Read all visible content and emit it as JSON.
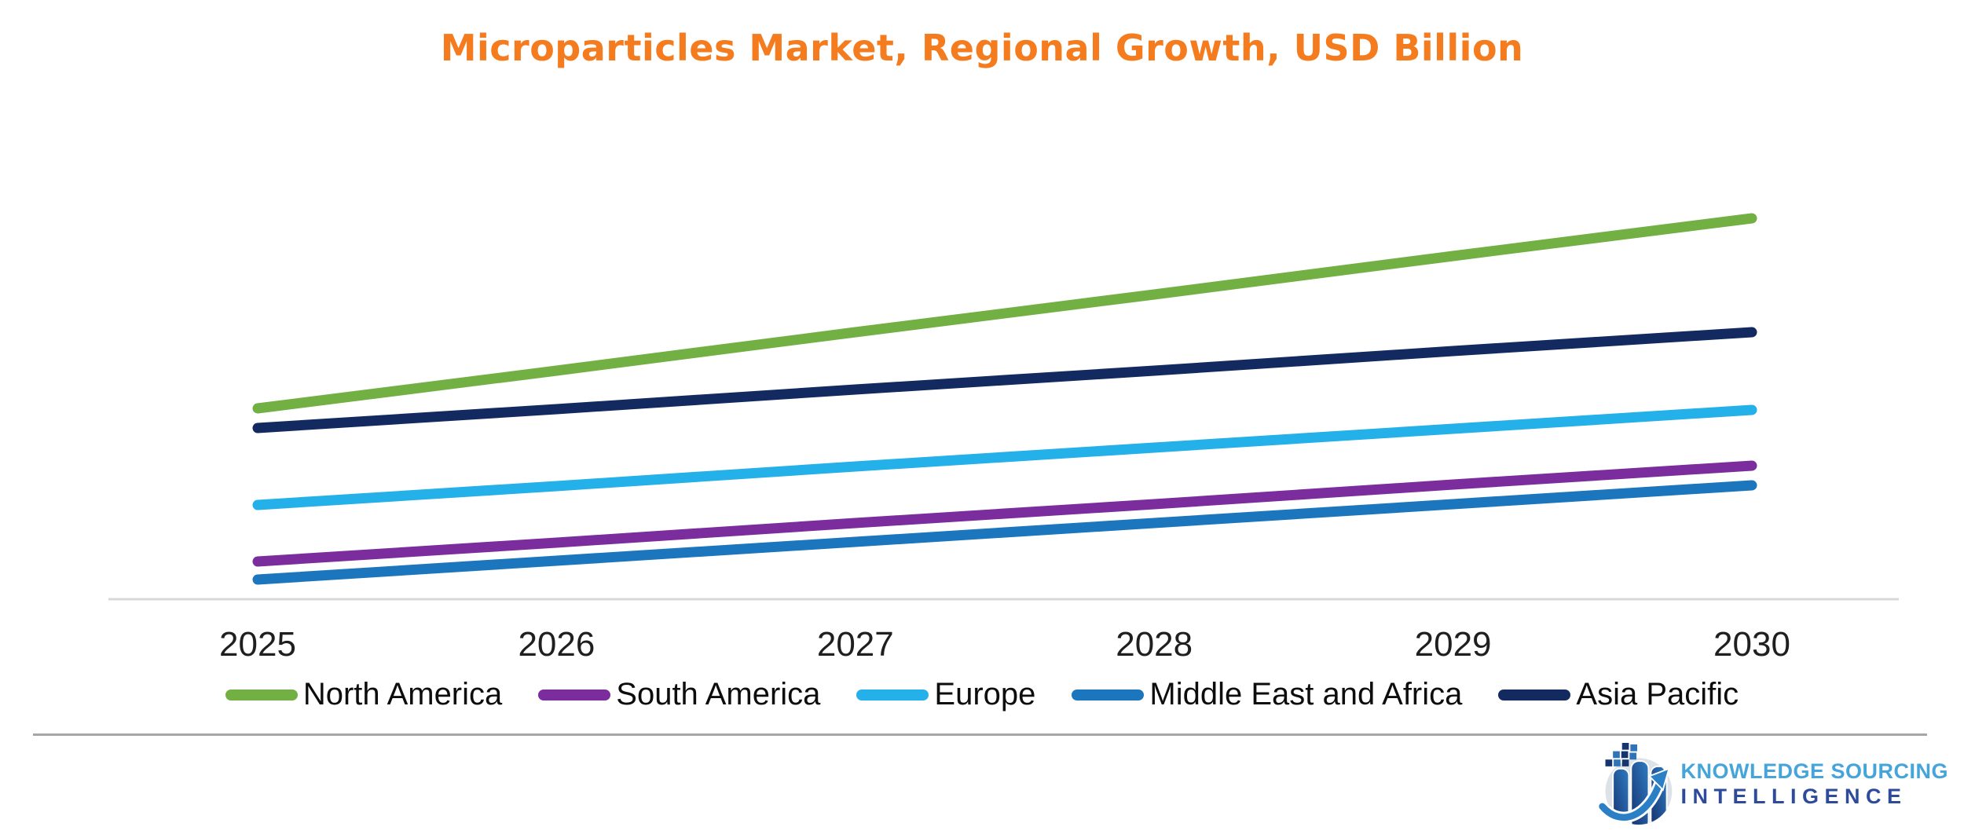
{
  "page": {
    "background": "#ffffff"
  },
  "chart": {
    "title": "Microparticles Market, Regional Growth, USD Billion",
    "title_color": "#f57c1e"
  },
  "chart_data": {
    "type": "line",
    "title": "Microparticles Market, Regional Growth, USD Billion",
    "x": [
      2025,
      2026,
      2027,
      2028,
      2029,
      2030
    ],
    "xlabel": "",
    "ylabel": "",
    "y_axis_shown": false,
    "y_units": "relative height units (chart displays no y-axis scale or gridlines; values estimated proportionally from pixel heights above the baseline)",
    "grid": false,
    "legend_position": "bottom",
    "axis_color": "#d9d9d9",
    "series": [
      {
        "name": "North America",
        "color": "#72b043",
        "values": [
          243,
          291,
          340,
          388,
          437,
          485
        ]
      },
      {
        "name": "South America",
        "color": "#7b2d9e",
        "values": [
          48,
          72,
          97,
          121,
          146,
          170
        ]
      },
      {
        "name": "Europe",
        "color": "#24b0e8",
        "values": [
          120,
          144,
          169,
          193,
          217,
          241
        ]
      },
      {
        "name": "Middle East and Africa",
        "color": "#1b76be",
        "values": [
          25,
          49,
          73,
          97,
          121,
          145
        ]
      },
      {
        "name": "Asia Pacific",
        "color": "#122a60",
        "values": [
          218,
          242,
          267,
          291,
          316,
          340
        ]
      }
    ]
  },
  "logo": {
    "line1": "KNOWLEDGE SOURCING",
    "line2": "INTELLIGENCE",
    "line1_color": "#45a5da",
    "line2_color": "#2e4b9b"
  }
}
